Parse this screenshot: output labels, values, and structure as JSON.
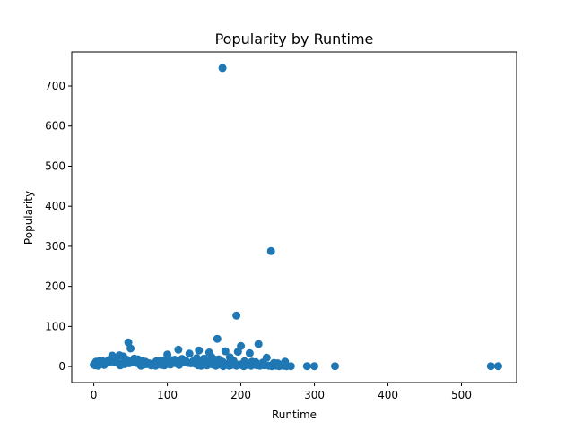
{
  "chart_data": {
    "type": "scatter",
    "title": "Popularity by Runtime",
    "xlabel": "Runtime",
    "ylabel": "Popularity",
    "xlim": [
      -30,
      575
    ],
    "ylim": [
      -40,
      785
    ],
    "xticks": [
      0,
      100,
      200,
      300,
      400,
      500
    ],
    "yticks": [
      0,
      100,
      200,
      300,
      400,
      500,
      600,
      700
    ],
    "grid": false,
    "marker_color": "#1f77b4",
    "points": [
      [
        175,
        745
      ],
      [
        241,
        288
      ],
      [
        194,
        127
      ],
      [
        168,
        69
      ],
      [
        47,
        60
      ],
      [
        224,
        56
      ],
      [
        200,
        51
      ],
      [
        50,
        45
      ],
      [
        115,
        42
      ],
      [
        143,
        40
      ],
      [
        179,
        38
      ],
      [
        196,
        37
      ],
      [
        157,
        35
      ],
      [
        212,
        33
      ],
      [
        130,
        32
      ],
      [
        100,
        30
      ],
      [
        35,
        28
      ],
      [
        25,
        27
      ],
      [
        40,
        25
      ],
      [
        160,
        24
      ],
      [
        185,
        23
      ],
      [
        235,
        22
      ],
      [
        55,
        20
      ],
      [
        60,
        18
      ],
      [
        150,
        20
      ],
      [
        120,
        19
      ],
      [
        140,
        21
      ],
      [
        170,
        18
      ],
      [
        165,
        17
      ],
      [
        20,
        16
      ],
      [
        30,
        18
      ],
      [
        45,
        17
      ],
      [
        8,
        14
      ],
      [
        12,
        13
      ],
      [
        3,
        12
      ],
      [
        65,
        14
      ],
      [
        70,
        12
      ],
      [
        85,
        13
      ],
      [
        90,
        14
      ],
      [
        95,
        15
      ],
      [
        105,
        16
      ],
      [
        110,
        17
      ],
      [
        125,
        14
      ],
      [
        135,
        13
      ],
      [
        145,
        12
      ],
      [
        155,
        11
      ],
      [
        175,
        12
      ],
      [
        190,
        14
      ],
      [
        205,
        13
      ],
      [
        215,
        12
      ],
      [
        220,
        11
      ],
      [
        230,
        10
      ],
      [
        245,
        9
      ],
      [
        250,
        8
      ],
      [
        260,
        12
      ],
      [
        10,
        8
      ],
      [
        15,
        9
      ],
      [
        0,
        5
      ],
      [
        2,
        3
      ],
      [
        5,
        7
      ],
      [
        18,
        10
      ],
      [
        22,
        12
      ],
      [
        28,
        11
      ],
      [
        33,
        9
      ],
      [
        38,
        7
      ],
      [
        42,
        6
      ],
      [
        48,
        8
      ],
      [
        52,
        10
      ],
      [
        58,
        9
      ],
      [
        62,
        7
      ],
      [
        68,
        5
      ],
      [
        72,
        6
      ],
      [
        75,
        8
      ],
      [
        80,
        7
      ],
      [
        88,
        9
      ],
      [
        98,
        10
      ],
      [
        102,
        11
      ],
      [
        108,
        9
      ],
      [
        112,
        8
      ],
      [
        118,
        10
      ],
      [
        122,
        11
      ],
      [
        128,
        9
      ],
      [
        132,
        8
      ],
      [
        138,
        7
      ],
      [
        148,
        6
      ],
      [
        152,
        8
      ],
      [
        158,
        7
      ],
      [
        162,
        5
      ],
      [
        168,
        4
      ],
      [
        172,
        6
      ],
      [
        178,
        5
      ],
      [
        182,
        7
      ],
      [
        188,
        6
      ],
      [
        192,
        4
      ],
      [
        198,
        5
      ],
      [
        202,
        3
      ],
      [
        208,
        4
      ],
      [
        210,
        6
      ],
      [
        218,
        5
      ],
      [
        222,
        3
      ],
      [
        226,
        2
      ],
      [
        228,
        4
      ],
      [
        232,
        3
      ],
      [
        238,
        2
      ],
      [
        242,
        1
      ],
      [
        248,
        2
      ],
      [
        252,
        1
      ],
      [
        255,
        3
      ],
      [
        258,
        2
      ],
      [
        262,
        1
      ],
      [
        268,
        1
      ],
      [
        290,
        1
      ],
      [
        300,
        1
      ],
      [
        328,
        1
      ],
      [
        540,
        1
      ],
      [
        550,
        1
      ],
      [
        6,
        2
      ],
      [
        14,
        4
      ],
      [
        36,
        3
      ],
      [
        64,
        2
      ],
      [
        78,
        3
      ],
      [
        84,
        2
      ],
      [
        92,
        4
      ],
      [
        96,
        3
      ],
      [
        104,
        5
      ],
      [
        116,
        4
      ],
      [
        142,
        3
      ],
      [
        146,
        2
      ],
      [
        154,
        3
      ],
      [
        166,
        2
      ],
      [
        176,
        1
      ],
      [
        184,
        2
      ],
      [
        186,
        3
      ],
      [
        194,
        2
      ],
      [
        204,
        1
      ],
      [
        214,
        2
      ]
    ]
  }
}
